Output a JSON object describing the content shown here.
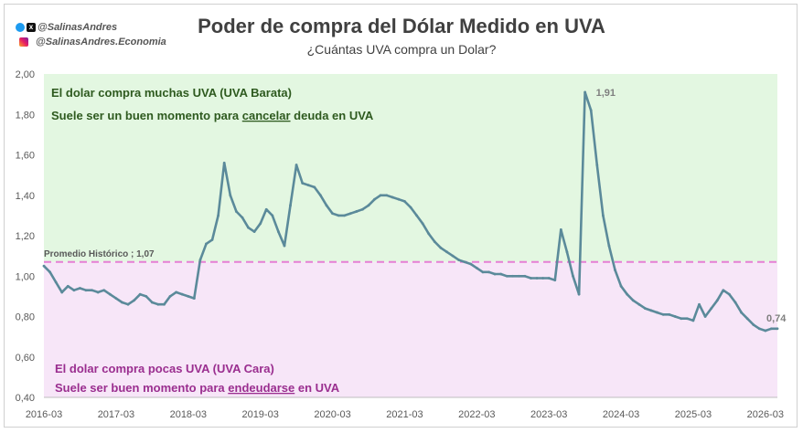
{
  "header": {
    "handle_twitter": "@SalinasAndres",
    "handle_instagram": "@SalinasAndres.Economia",
    "twitter_icon": "twitter-bird-icon",
    "x_icon": "x-logo-icon",
    "instagram_icon": "instagram-icon"
  },
  "chart_data": {
    "type": "line",
    "title": "Poder de compra del Dólar Medido en UVA",
    "subtitle": "¿Cuántas UVA compra un Dolar?",
    "xlabel": "",
    "ylabel": "",
    "ylim": [
      0.4,
      2.0
    ],
    "y_ticks": [
      "2,00",
      "1,80",
      "1,60",
      "1,40",
      "1,20",
      "1,00",
      "0,80",
      "0,60",
      "0,40"
    ],
    "x_ticks": [
      "2016-03",
      "2017-03",
      "2018-03",
      "2019-03",
      "2020-03",
      "2021-03",
      "2022-03",
      "2023-03",
      "2024-03",
      "2025-03",
      "2026-03"
    ],
    "x_range": [
      "2016-03",
      "2026-05"
    ],
    "series": [
      {
        "color": "#5b8a9a",
        "points": [
          [
            "2016-03",
            1.05
          ],
          [
            "2016-04",
            1.02
          ],
          [
            "2016-05",
            0.97
          ],
          [
            "2016-06",
            0.92
          ],
          [
            "2016-07",
            0.95
          ],
          [
            "2016-08",
            0.93
          ],
          [
            "2016-09",
            0.94
          ],
          [
            "2016-10",
            0.93
          ],
          [
            "2016-11",
            0.93
          ],
          [
            "2016-12",
            0.92
          ],
          [
            "2017-01",
            0.93
          ],
          [
            "2017-02",
            0.91
          ],
          [
            "2017-03",
            0.89
          ],
          [
            "2017-04",
            0.87
          ],
          [
            "2017-05",
            0.86
          ],
          [
            "2017-06",
            0.88
          ],
          [
            "2017-07",
            0.91
          ],
          [
            "2017-08",
            0.9
          ],
          [
            "2017-09",
            0.87
          ],
          [
            "2017-10",
            0.86
          ],
          [
            "2017-11",
            0.86
          ],
          [
            "2017-12",
            0.9
          ],
          [
            "2018-01",
            0.92
          ],
          [
            "2018-02",
            0.91
          ],
          [
            "2018-03",
            0.9
          ],
          [
            "2018-04",
            0.89
          ],
          [
            "2018-05",
            1.08
          ],
          [
            "2018-06",
            1.16
          ],
          [
            "2018-07",
            1.18
          ],
          [
            "2018-08",
            1.3
          ],
          [
            "2018-09",
            1.56
          ],
          [
            "2018-10",
            1.4
          ],
          [
            "2018-11",
            1.32
          ],
          [
            "2018-12",
            1.29
          ],
          [
            "2019-01",
            1.24
          ],
          [
            "2019-02",
            1.22
          ],
          [
            "2019-03",
            1.26
          ],
          [
            "2019-04",
            1.33
          ],
          [
            "2019-05",
            1.3
          ],
          [
            "2019-06",
            1.22
          ],
          [
            "2019-07",
            1.15
          ],
          [
            "2019-08",
            1.35
          ],
          [
            "2019-09",
            1.55
          ],
          [
            "2019-10",
            1.46
          ],
          [
            "2019-11",
            1.45
          ],
          [
            "2019-12",
            1.44
          ],
          [
            "2020-01",
            1.4
          ],
          [
            "2020-02",
            1.35
          ],
          [
            "2020-03",
            1.31
          ],
          [
            "2020-04",
            1.3
          ],
          [
            "2020-05",
            1.3
          ],
          [
            "2020-06",
            1.31
          ],
          [
            "2020-07",
            1.32
          ],
          [
            "2020-08",
            1.33
          ],
          [
            "2020-09",
            1.35
          ],
          [
            "2020-10",
            1.38
          ],
          [
            "2020-11",
            1.4
          ],
          [
            "2020-12",
            1.4
          ],
          [
            "2021-01",
            1.39
          ],
          [
            "2021-02",
            1.38
          ],
          [
            "2021-03",
            1.37
          ],
          [
            "2021-04",
            1.34
          ],
          [
            "2021-05",
            1.3
          ],
          [
            "2021-06",
            1.26
          ],
          [
            "2021-07",
            1.21
          ],
          [
            "2021-08",
            1.17
          ],
          [
            "2021-09",
            1.14
          ],
          [
            "2021-10",
            1.12
          ],
          [
            "2021-11",
            1.1
          ],
          [
            "2021-12",
            1.08
          ],
          [
            "2022-01",
            1.07
          ],
          [
            "2022-02",
            1.06
          ],
          [
            "2022-03",
            1.04
          ],
          [
            "2022-04",
            1.02
          ],
          [
            "2022-05",
            1.02
          ],
          [
            "2022-06",
            1.01
          ],
          [
            "2022-07",
            1.01
          ],
          [
            "2022-08",
            1.0
          ],
          [
            "2022-09",
            1.0
          ],
          [
            "2022-10",
            1.0
          ],
          [
            "2022-11",
            1.0
          ],
          [
            "2022-12",
            0.99
          ],
          [
            "2023-01",
            0.99
          ],
          [
            "2023-02",
            0.99
          ],
          [
            "2023-03",
            0.99
          ],
          [
            "2023-04",
            0.98
          ],
          [
            "2023-05",
            1.23
          ],
          [
            "2023-06",
            1.12
          ],
          [
            "2023-07",
            1.0
          ],
          [
            "2023-08",
            0.91
          ],
          [
            "2023-09",
            1.91
          ],
          [
            "2023-10",
            1.82
          ],
          [
            "2023-11",
            1.55
          ],
          [
            "2023-12",
            1.3
          ],
          [
            "2024-01",
            1.15
          ],
          [
            "2024-02",
            1.03
          ],
          [
            "2024-03",
            0.95
          ],
          [
            "2024-04",
            0.91
          ],
          [
            "2024-05",
            0.88
          ],
          [
            "2024-06",
            0.86
          ],
          [
            "2024-07",
            0.84
          ],
          [
            "2024-08",
            0.83
          ],
          [
            "2024-09",
            0.82
          ],
          [
            "2024-10",
            0.81
          ],
          [
            "2024-11",
            0.81
          ],
          [
            "2024-12",
            0.8
          ],
          [
            "2025-01",
            0.79
          ],
          [
            "2025-02",
            0.79
          ],
          [
            "2025-03",
            0.78
          ],
          [
            "2025-04",
            0.86
          ],
          [
            "2025-05",
            0.8
          ],
          [
            "2025-06",
            0.84
          ],
          [
            "2025-07",
            0.88
          ],
          [
            "2025-08",
            0.93
          ],
          [
            "2025-09",
            0.91
          ],
          [
            "2025-10",
            0.87
          ],
          [
            "2025-11",
            0.82
          ],
          [
            "2025-12",
            0.79
          ],
          [
            "2026-01",
            0.76
          ],
          [
            "2026-02",
            0.74
          ],
          [
            "2026-03",
            0.73
          ],
          [
            "2026-04",
            0.74
          ],
          [
            "2026-05",
            0.74
          ]
        ]
      }
    ],
    "reference_line": {
      "value": 1.07,
      "label": "Promedio Histórico ;  1,07",
      "color": "#e57fd4"
    },
    "upper_band": {
      "from": 1.07,
      "to": 2.0,
      "color": "#e3f7e1",
      "text_color": "#2e5a1f",
      "line1": "El dolar compra muchas UVA (UVA Barata)",
      "line2_before": "Suele ser un buen momento para ",
      "line2_underlined": "cancelar",
      "line2_after": " deuda en UVA"
    },
    "lower_band": {
      "from": 0.4,
      "to": 1.07,
      "color": "#f7e6f8",
      "text_color": "#9a2e8f",
      "line1": "El dolar compra pocas UVA (UVA Cara)",
      "line2_before": "Suele ser buen momento para ",
      "line2_underlined": "endeudarse",
      "line2_after": " en UVA"
    },
    "annotations": [
      {
        "x": "2023-09",
        "y": 1.91,
        "text": "1,91"
      },
      {
        "x": "2026-05",
        "y": 0.74,
        "text": "0,74"
      }
    ],
    "grid": false,
    "legend": "none"
  }
}
